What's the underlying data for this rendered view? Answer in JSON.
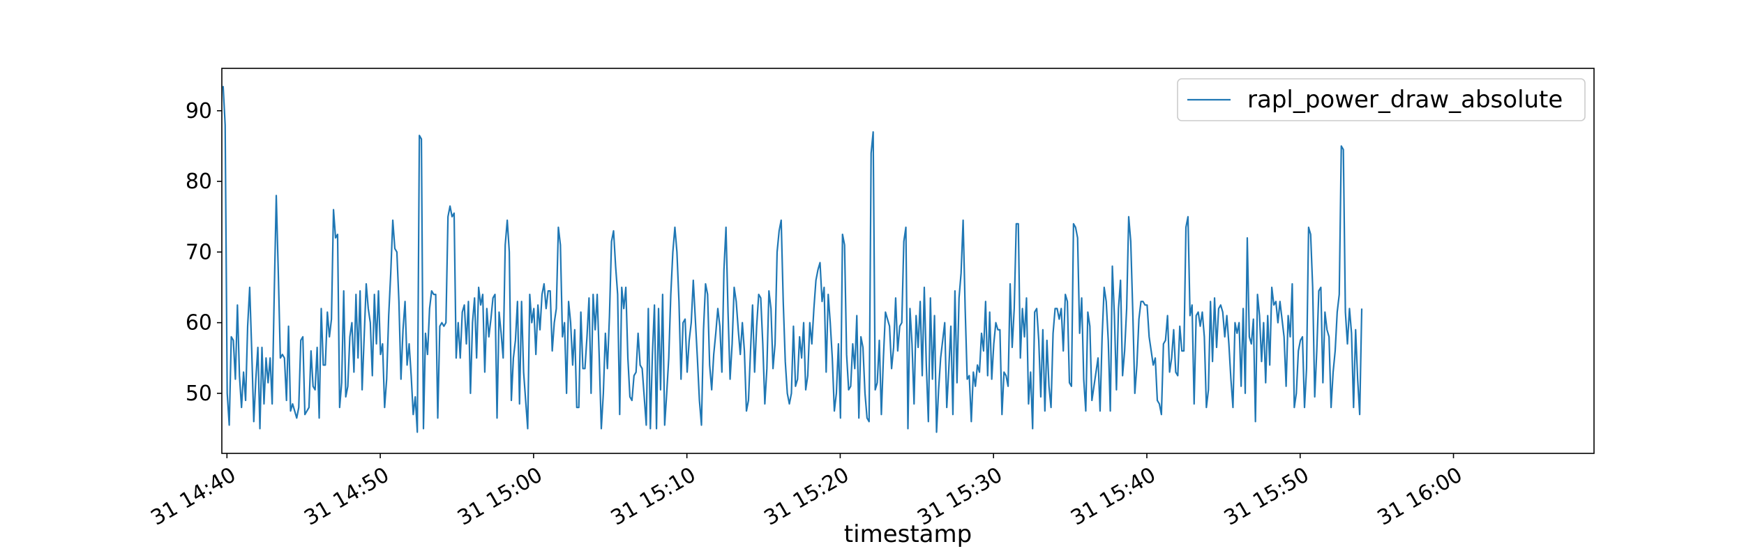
{
  "chart_data": {
    "type": "line",
    "xlabel": "timestamp",
    "ylabel": "",
    "x_range": [
      "31 14:39:40",
      "31 16:09:10"
    ],
    "ylim": [
      41.5,
      96.0
    ],
    "y_ticks": [
      50,
      60,
      70,
      80,
      90
    ],
    "y_tick_labels": [
      "50",
      "60",
      "70",
      "80",
      "90"
    ],
    "x_ticks": [
      "31 14:40",
      "31 14:50",
      "31 15:00",
      "31 15:10",
      "31 15:20",
      "31 15:30",
      "31 15:40",
      "31 15:50",
      "31 16:00"
    ],
    "x_tick_labels": [
      "31 14:40",
      "31 14:50",
      "31 15:00",
      "31 15:10",
      "31 15:20",
      "31 15:30",
      "31 15:40",
      "31 15:50",
      "31 16:00"
    ],
    "x_start": "31 14:39:45",
    "x_interval_seconds": 8,
    "legend": {
      "position": "top-right",
      "entries": [
        "rapl_power_draw_absolute"
      ]
    },
    "grid": false,
    "series": [
      {
        "name": "rapl_power_draw_absolute",
        "color": "#1f77b4",
        "values": [
          93.5,
          88,
          50,
          45.5,
          58,
          57.5,
          52,
          62.5,
          52.5,
          48,
          53,
          49,
          59.5,
          65,
          56,
          46,
          52,
          56.5,
          45,
          56.5,
          48.5,
          55,
          51.5,
          55,
          48.5,
          64,
          78,
          67,
          55,
          55.5,
          55,
          49,
          59.5,
          47.5,
          48.5,
          47.5,
          46.5,
          48,
          57.5,
          58,
          47,
          47.5,
          48,
          56,
          51,
          50.5,
          56.5,
          46.5,
          62,
          54,
          54,
          61.5,
          58,
          60.5,
          76,
          72,
          72.5,
          48,
          51.5,
          64.5,
          49.5,
          51,
          58,
          60,
          53,
          64,
          55,
          64.5,
          50.5,
          58,
          65.5,
          62,
          60,
          52.5,
          64,
          57,
          64.5,
          55.5,
          57,
          48,
          52,
          61,
          67,
          74.5,
          70.5,
          70,
          63,
          52,
          59,
          63,
          54,
          57,
          52.5,
          47,
          49.5,
          44.5,
          86.5,
          86,
          45,
          58.5,
          55.5,
          62,
          64.5,
          64,
          64,
          46.5,
          59.5,
          60,
          59.5,
          60,
          75,
          76.5,
          75,
          75.5,
          55,
          60,
          55,
          61.5,
          62.5,
          57,
          63,
          50,
          60,
          63.5,
          55,
          65,
          62.5,
          64,
          53,
          62,
          58,
          60.5,
          63.5,
          64,
          46.5,
          61.5,
          58.5,
          55,
          71,
          74.5,
          70,
          49,
          55,
          57.5,
          63,
          48.5,
          63,
          53,
          49,
          45,
          64,
          60,
          62,
          55.5,
          62.5,
          59,
          64,
          65.5,
          62,
          64.5,
          64.5,
          56,
          60,
          62,
          73.5,
          71,
          58,
          60,
          50,
          63,
          60,
          54,
          59,
          48,
          48,
          61.5,
          53.5,
          53.5,
          58,
          63.5,
          50,
          64,
          59,
          64,
          55,
          45,
          50,
          58.5,
          53.5,
          61,
          71.5,
          73,
          68,
          64,
          47,
          65,
          62,
          65,
          55,
          49.5,
          49,
          52.5,
          53,
          58.5,
          54,
          53.5,
          49.5,
          45.5,
          62,
          45,
          55.5,
          62.5,
          45,
          62,
          50.5,
          64,
          45.5,
          50,
          55,
          64,
          70,
          73.5,
          70,
          63,
          52,
          60,
          60.5,
          53,
          57.5,
          60,
          66,
          60.5,
          55,
          49,
          45.5,
          59,
          65.5,
          64,
          54,
          50.5,
          55.5,
          58.5,
          62,
          59.5,
          53,
          67.5,
          73.5,
          61.5,
          52,
          57,
          65,
          63,
          59,
          55.5,
          60,
          56,
          47.5,
          49,
          56,
          62.5,
          53,
          59.5,
          64,
          63.5,
          57,
          48.5,
          53.5,
          64.5,
          62,
          53.5,
          57,
          70,
          73,
          74.5,
          63,
          54.5,
          50,
          48.5,
          50,
          59.5,
          51,
          52,
          58,
          55,
          60,
          50.5,
          52.5,
          60,
          57,
          62,
          66,
          67.5,
          68.5,
          63,
          65,
          53,
          64,
          60,
          55,
          47.5,
          50,
          57,
          46.5,
          72.5,
          71,
          55.5,
          50.5,
          51,
          57,
          53.5,
          61,
          46.5,
          58,
          56.5,
          50,
          46.5,
          46,
          84,
          87,
          50.5,
          51.5,
          57.5,
          47,
          55,
          61.5,
          60.5,
          59.5,
          53.5,
          56.5,
          63.5,
          56,
          59.5,
          60,
          71.5,
          73.5,
          45,
          62,
          57,
          48.5,
          61,
          56.5,
          63,
          52.5,
          65,
          54,
          46,
          63.5,
          52,
          61,
          44.5,
          50.5,
          55,
          57.5,
          60,
          48,
          53.5,
          59.5,
          47,
          64.5,
          51.5,
          63.5,
          67,
          74.5,
          62,
          52,
          52.5,
          46,
          53,
          51,
          54,
          53,
          58.5,
          56,
          63,
          52.5,
          61.5,
          52,
          57,
          60,
          59,
          59,
          47,
          53,
          52.5,
          51,
          65.5,
          56.5,
          62,
          74,
          74,
          55,
          62,
          58,
          63.5,
          48.5,
          53,
          45,
          61.5,
          62,
          57.5,
          49.5,
          59,
          47.5,
          57.5,
          51,
          48,
          58.5,
          62,
          62,
          60.5,
          62,
          56,
          64,
          63,
          51.5,
          51,
          74,
          73.5,
          72,
          58.5,
          63.5,
          52,
          47.5,
          61.5,
          59.5,
          49,
          51,
          53,
          55,
          47.5,
          58,
          65,
          63,
          57.5,
          47.5,
          68,
          61,
          50.5,
          62,
          66,
          52.5,
          56,
          62,
          75,
          71.5,
          61.5,
          50,
          54,
          60.5,
          63,
          63,
          62.5,
          62.5,
          58,
          56,
          54,
          55,
          49,
          48.5,
          47,
          57,
          57.5,
          61,
          53,
          55,
          59,
          53,
          52.5,
          59.5,
          56,
          56,
          73.5,
          75,
          61,
          62.5,
          48.5,
          61,
          61.5,
          59.5,
          61.5,
          58,
          48,
          50.5,
          63,
          54.5,
          63.5,
          56.5,
          62,
          62.5,
          61.5,
          58,
          61,
          57,
          52,
          48,
          60,
          58.5,
          60,
          51,
          62,
          50,
          72,
          58,
          57,
          60.5,
          46,
          64,
          61,
          54.5,
          60,
          51.5,
          61,
          54,
          65,
          62.5,
          63,
          60,
          63,
          60.5,
          58,
          51,
          61,
          58,
          65.5,
          48,
          50,
          56,
          57.5,
          58,
          48,
          53.5,
          73.5,
          72.5,
          65,
          49.5,
          56,
          64.5,
          65,
          51.5,
          61.5,
          59,
          58,
          48,
          53,
          56,
          61.5,
          64,
          85,
          84.5,
          61.5,
          57,
          62,
          58.5,
          48,
          59,
          52,
          47,
          62
        ]
      }
    ]
  }
}
